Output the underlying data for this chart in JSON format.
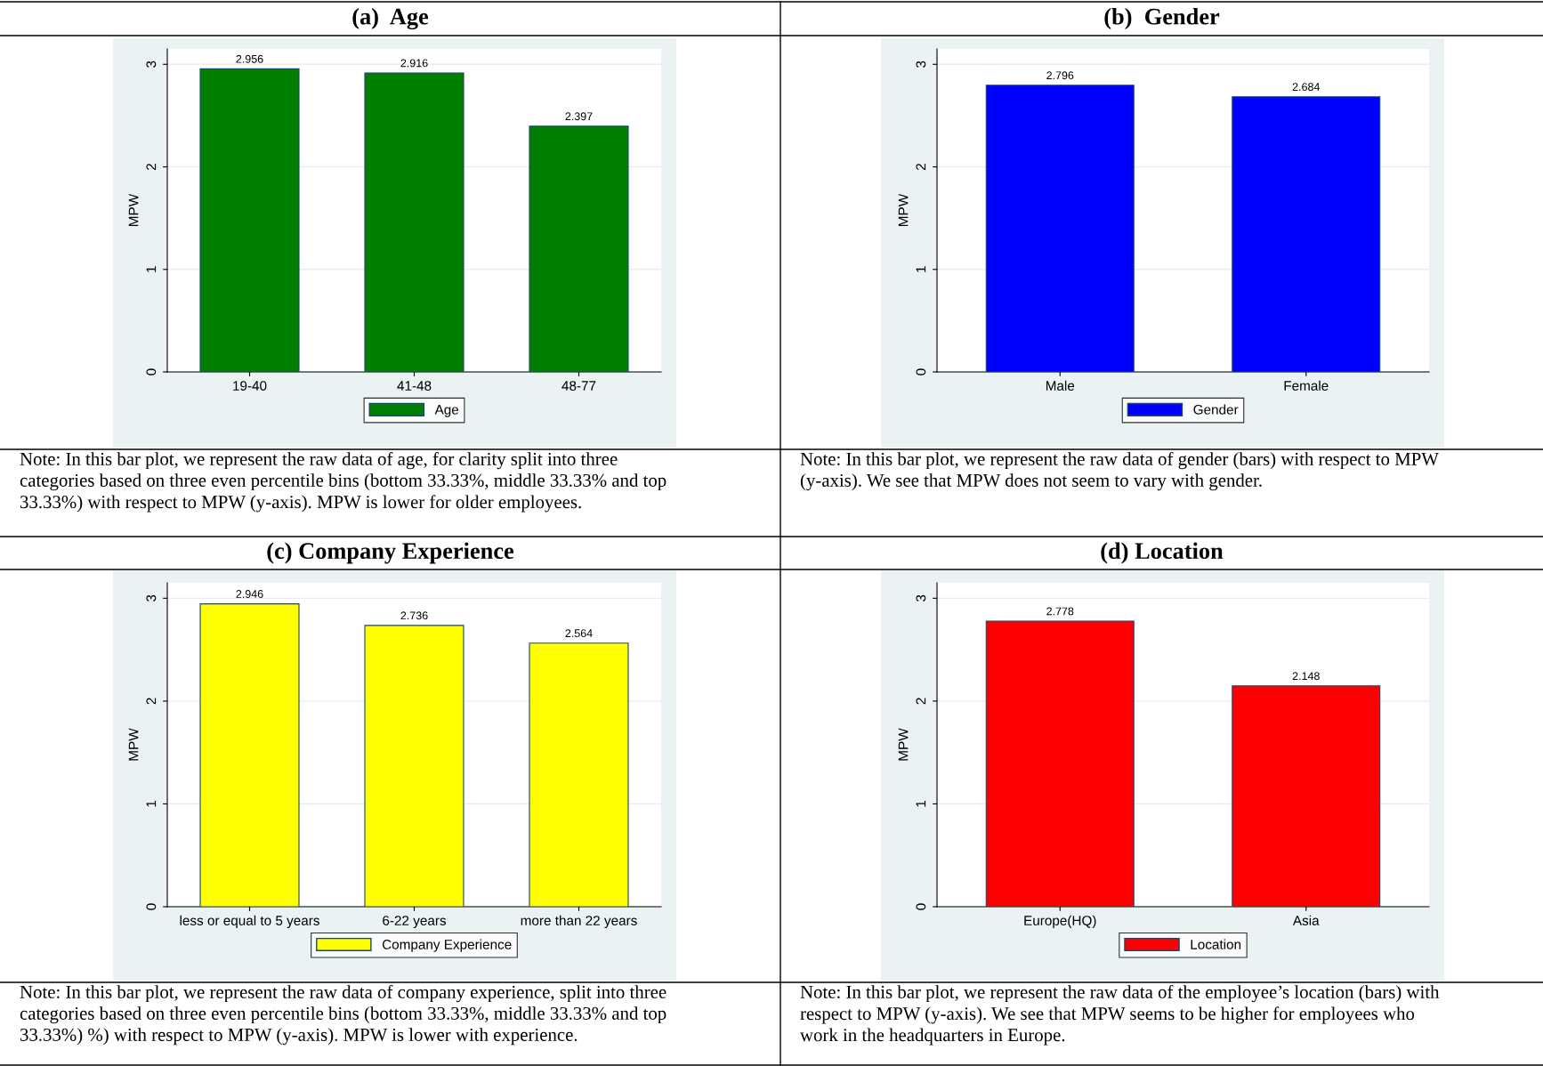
{
  "chart_data": [
    {
      "type": "bar",
      "title": "(a)  Age",
      "ylabel": "MPW",
      "categories": [
        "19-40",
        "41-48",
        "48-77"
      ],
      "series": [
        {
          "name": "Age",
          "color": "#007f00",
          "values": [
            2.956,
            2.916,
            2.397
          ]
        }
      ],
      "ylim": [
        0,
        3.15
      ],
      "yticks": [
        0,
        1,
        2,
        3
      ],
      "grid": "y",
      "legend": "bottom",
      "data_labels": true,
      "annotations": [
        "Note: In this bar plot, we represent the raw data of age, for clarity split into three\ncategories based on three even percentile bins (bottom 33.33%, middle 33.33% and top\n33.33%) with respect to MPW (y-axis). MPW is lower for older employees."
      ]
    },
    {
      "type": "bar",
      "title": "(b)  Gender",
      "ylabel": "MPW",
      "categories": [
        "Male",
        "Female"
      ],
      "series": [
        {
          "name": "Gender",
          "color": "#0000ff",
          "values": [
            2.796,
            2.684
          ]
        }
      ],
      "ylim": [
        0,
        3.15
      ],
      "yticks": [
        0,
        1,
        2,
        3
      ],
      "grid": "y",
      "legend": "bottom",
      "data_labels": true,
      "annotations": [
        "Note: In this bar plot, we represent the raw data of gender (bars) with respect to MPW\n(y-axis). We see that MPW does not seem to vary with gender."
      ]
    },
    {
      "type": "bar",
      "title": "(c) Company Experience",
      "ylabel": "MPW",
      "categories": [
        "less or equal to 5 years",
        "6-22 years",
        "more than 22 years"
      ],
      "series": [
        {
          "name": "Company Experience",
          "color": "#ffff00",
          "values": [
            2.946,
            2.736,
            2.564
          ]
        }
      ],
      "ylim": [
        0,
        3.15
      ],
      "yticks": [
        0,
        1,
        2,
        3
      ],
      "grid": "y",
      "legend": "bottom",
      "data_labels": true,
      "annotations": [
        "Note: In this bar plot, we represent the raw data of company experience, split into three\ncategories based on three even percentile bins (bottom 33.33%, middle 33.33% and top\n33.33%) %) with respect to MPW (y-axis). MPW is lower with experience."
      ]
    },
    {
      "type": "bar",
      "title": "(d) Location",
      "ylabel": "MPW",
      "categories": [
        "Europe(HQ)",
        "Asia"
      ],
      "series": [
        {
          "name": "Location",
          "color": "#ff0000",
          "values": [
            2.778,
            2.148
          ]
        }
      ],
      "ylim": [
        0,
        3.15
      ],
      "yticks": [
        0,
        1,
        2,
        3
      ],
      "grid": "y",
      "legend": "bottom",
      "data_labels": true,
      "annotations": [
        "Note: In this bar plot, we represent the raw data of the employee’s location (bars) with\nrespect to MPW (y-axis). We see that MPW seems to be higher for employees who\nwork in the headquarters in Europe."
      ]
    }
  ]
}
